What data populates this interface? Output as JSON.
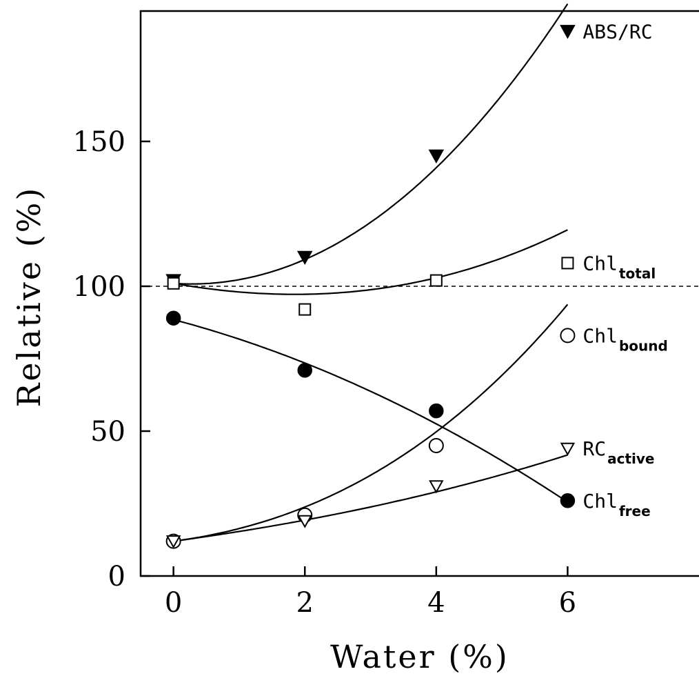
{
  "chart_data": {
    "type": "scatter",
    "xlabel": "Water (%)",
    "ylabel": "Relative (%)",
    "xlim": [
      -0.5,
      8
    ],
    "ylim": [
      0,
      195
    ],
    "x_ticks": [
      "0",
      "2",
      "4",
      "6"
    ],
    "y_ticks": [
      "0",
      "50",
      "100",
      "150"
    ],
    "x": [
      0,
      2,
      4,
      6
    ],
    "reference_line": {
      "y": 100,
      "style": "dashed"
    },
    "grid": false,
    "series": [
      {
        "name": "ABS/RC",
        "label_main": "ABS/RC",
        "label_sub": "",
        "marker": "triangle-down-filled",
        "values": [
          102,
          110,
          145,
          188
        ],
        "fit": [
          101,
          -1.5,
          2.75,
          0.03
        ]
      },
      {
        "name": "Chltotal",
        "label_main": "Chl",
        "label_sub": "total",
        "marker": "square-open",
        "values": [
          101,
          92,
          102,
          108
        ],
        "fit": [
          101,
          -4,
          1,
          0.03
        ]
      },
      {
        "name": "Chlbound",
        "label_main": "Chl",
        "label_sub": "bound",
        "marker": "circle-open",
        "values": [
          12,
          21,
          45,
          83
        ],
        "fit": [
          12,
          3,
          1.29,
          0.08
        ]
      },
      {
        "name": "RCactive",
        "label_main": "RC",
        "label_sub": "active",
        "marker": "triangle-up-open",
        "values": [
          12,
          19,
          31,
          44
        ],
        "fit": [
          12,
          3.1,
          0.25,
          0.01
        ]
      },
      {
        "name": "Chlfree",
        "label_main": "Chl",
        "label_sub": "free",
        "marker": "circle-filled",
        "values": [
          89,
          71,
          57,
          26
        ],
        "fit": [
          88.5,
          -6,
          -0.75,
          0
        ]
      }
    ]
  }
}
